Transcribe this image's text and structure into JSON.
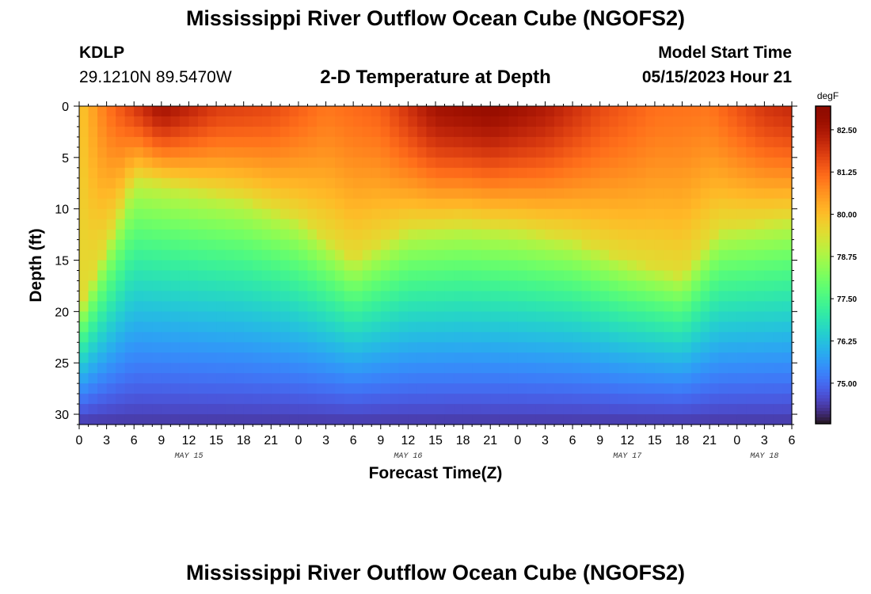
{
  "header": {
    "title": "Mississippi River Outflow Ocean Cube (NGOFS2)",
    "station_id": "KDLP",
    "coordinates": "29.1210N  89.5470W",
    "subtitle": "2-D Temperature at Depth",
    "model_start_label": "Model Start Time",
    "model_start_value": "05/15/2023 Hour 21"
  },
  "footer": {
    "title": "Mississippi River Outflow Ocean Cube (NGOFS2)"
  },
  "chart_data": {
    "type": "heatmap",
    "title": "2-D Temperature at Depth",
    "xlabel": "Forecast Time(Z)",
    "ylabel": "Depth (ft)",
    "x_hours_range": [
      0,
      78
    ],
    "x_tick_labels": [
      "0",
      "3",
      "6",
      "9",
      "12",
      "15",
      "18",
      "21",
      "0",
      "3",
      "6",
      "9",
      "12",
      "15",
      "18",
      "21",
      "0",
      "3",
      "6",
      "9",
      "12",
      "15",
      "18",
      "21",
      "0",
      "3",
      "6"
    ],
    "date_labels": [
      {
        "label": "MAY 15",
        "hour": 12
      },
      {
        "label": "MAY 16",
        "hour": 36
      },
      {
        "label": "MAY 17",
        "hour": 60
      },
      {
        "label": "MAY 18",
        "hour": 75
      }
    ],
    "ylim": [
      0,
      31
    ],
    "y_ticks": [
      0,
      5,
      10,
      15,
      20,
      25,
      30
    ],
    "y_inverted": true,
    "colorbar": {
      "unit": "degF",
      "min": 73.8,
      "max": 83.2,
      "ticks": [
        "82.50",
        "81.25",
        "80.00",
        "78.75",
        "77.50",
        "76.25",
        "75.00"
      ],
      "tick_values": [
        82.5,
        81.25,
        80.0,
        78.75,
        77.5,
        76.25,
        75.0
      ],
      "colormap": "turbo"
    },
    "thermocline_depth_ft": [
      {
        "hour": 0,
        "depth": 20
      },
      {
        "hour": 6,
        "depth": 7
      },
      {
        "hour": 12,
        "depth": 8
      },
      {
        "hour": 18,
        "depth": 9
      },
      {
        "hour": 24,
        "depth": 11
      },
      {
        "hour": 30,
        "depth": 15
      },
      {
        "hour": 36,
        "depth": 12
      },
      {
        "hour": 42,
        "depth": 11.5
      },
      {
        "hour": 48,
        "depth": 12
      },
      {
        "hour": 54,
        "depth": 13
      },
      {
        "hour": 60,
        "depth": 15
      },
      {
        "hour": 66,
        "depth": 16.5
      },
      {
        "hour": 70,
        "depth": 12
      },
      {
        "hour": 78,
        "depth": 11
      }
    ],
    "surface_temp_degF": [
      {
        "hour": 0,
        "temp": 79.8
      },
      {
        "hour": 3,
        "temp": 81.0
      },
      {
        "hour": 9,
        "temp": 82.6
      },
      {
        "hour": 15,
        "temp": 81.8
      },
      {
        "hour": 21,
        "temp": 81.6
      },
      {
        "hour": 27,
        "temp": 81.0
      },
      {
        "hour": 33,
        "temp": 81.3
      },
      {
        "hour": 39,
        "temp": 82.6
      },
      {
        "hour": 45,
        "temp": 82.9
      },
      {
        "hour": 51,
        "temp": 82.4
      },
      {
        "hour": 57,
        "temp": 81.6
      },
      {
        "hour": 63,
        "temp": 81.1
      },
      {
        "hour": 69,
        "temp": 81.0
      },
      {
        "hour": 75,
        "temp": 81.9
      },
      {
        "hour": 78,
        "temp": 82.1
      }
    ],
    "bottom_temp_degF": 74.3
  }
}
